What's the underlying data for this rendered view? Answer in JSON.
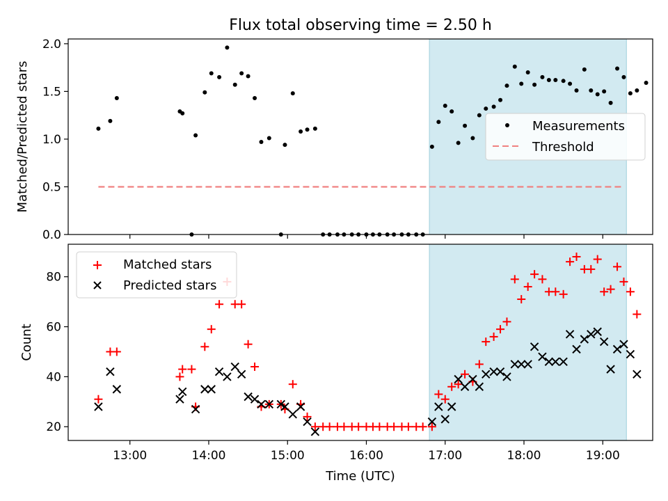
{
  "chart_data": [
    {
      "type": "scatter",
      "title": "Flux total observing time = 2.50 h",
      "xlabel": "",
      "ylabel": "Matched/Predicted stars",
      "xlim": [
        "12:13",
        "19:38"
      ],
      "ylim": [
        0,
        2.05
      ],
      "yticks": [
        "0.0",
        "0.5",
        "1.0",
        "1.5",
        "2.0"
      ],
      "highlight_span": [
        "16:48",
        "19:18"
      ],
      "highlight_color": "#add8e6",
      "legend": {
        "placement": "center-right",
        "entries": [
          "Measurements",
          "Threshold"
        ]
      },
      "threshold": {
        "name": "Threshold",
        "value": 0.5,
        "x_range": [
          "12:36",
          "19:16"
        ],
        "color": "#f08080",
        "style": "dashed"
      },
      "series": [
        {
          "name": "Measurements",
          "color": "#000000",
          "marker": "dot",
          "points": [
            [
              "12:36",
              1.11
            ],
            [
              "12:45",
              1.19
            ],
            [
              "12:50",
              1.43
            ],
            [
              "13:38",
              1.29
            ],
            [
              "13:40",
              1.27
            ],
            [
              "13:47",
              0.0
            ],
            [
              "13:50",
              1.04
            ],
            [
              "13:57",
              1.49
            ],
            [
              "14:02",
              1.69
            ],
            [
              "14:08",
              1.65
            ],
            [
              "14:14",
              1.96
            ],
            [
              "14:20",
              1.57
            ],
            [
              "14:25",
              1.69
            ],
            [
              "14:30",
              1.66
            ],
            [
              "14:35",
              1.43
            ],
            [
              "14:40",
              0.97
            ],
            [
              "14:46",
              1.01
            ],
            [
              "14:55",
              0.0
            ],
            [
              "14:58",
              0.94
            ],
            [
              "15:04",
              1.48
            ],
            [
              "15:10",
              1.08
            ],
            [
              "15:15",
              1.1
            ],
            [
              "15:21",
              1.11
            ],
            [
              "15:27",
              0.0
            ],
            [
              "15:32",
              0.0
            ],
            [
              "15:38",
              0.0
            ],
            [
              "15:43",
              0.0
            ],
            [
              "15:49",
              0.0
            ],
            [
              "15:54",
              0.0
            ],
            [
              "16:00",
              0.0
            ],
            [
              "16:05",
              0.0
            ],
            [
              "16:10",
              0.0
            ],
            [
              "16:16",
              0.0
            ],
            [
              "16:21",
              0.0
            ],
            [
              "16:27",
              0.0
            ],
            [
              "16:32",
              0.0
            ],
            [
              "16:38",
              0.0
            ],
            [
              "16:43",
              0.0
            ],
            [
              "16:50",
              0.92
            ],
            [
              "16:55",
              1.18
            ],
            [
              "17:00",
              1.35
            ],
            [
              "17:05",
              1.29
            ],
            [
              "17:10",
              0.96
            ],
            [
              "17:15",
              1.14
            ],
            [
              "17:21",
              1.01
            ],
            [
              "17:26",
              1.25
            ],
            [
              "17:31",
              1.32
            ],
            [
              "17:37",
              1.34
            ],
            [
              "17:42",
              1.41
            ],
            [
              "17:47",
              1.56
            ],
            [
              "17:53",
              1.76
            ],
            [
              "17:58",
              1.58
            ],
            [
              "18:03",
              1.7
            ],
            [
              "18:08",
              1.57
            ],
            [
              "18:14",
              1.65
            ],
            [
              "18:19",
              1.62
            ],
            [
              "18:24",
              1.62
            ],
            [
              "18:30",
              1.61
            ],
            [
              "18:35",
              1.58
            ],
            [
              "18:40",
              1.51
            ],
            [
              "18:46",
              1.73
            ],
            [
              "18:51",
              1.51
            ],
            [
              "18:56",
              1.47
            ],
            [
              "19:01",
              1.5
            ],
            [
              "19:06",
              1.38
            ],
            [
              "19:11",
              1.74
            ],
            [
              "19:16",
              1.65
            ],
            [
              "19:21",
              1.48
            ],
            [
              "19:26",
              1.51
            ],
            [
              "19:33",
              1.59
            ]
          ]
        }
      ]
    },
    {
      "type": "scatter",
      "xlabel": "Time (UTC)",
      "ylabel": "Count",
      "xlim": [
        "12:13",
        "19:38"
      ],
      "ylim": [
        14.5,
        93
      ],
      "xticks": [
        "13:00",
        "14:00",
        "15:00",
        "16:00",
        "17:00",
        "18:00",
        "19:00"
      ],
      "yticks": [
        "20",
        "40",
        "60",
        "80"
      ],
      "highlight_span": [
        "16:48",
        "19:18"
      ],
      "highlight_color": "#add8e6",
      "legend": {
        "placement": "upper-left",
        "entries": [
          "Matched stars",
          "Predicted stars"
        ]
      },
      "series": [
        {
          "name": "Matched stars",
          "color": "#ff0000",
          "marker": "plus",
          "points": [
            [
              "12:36",
              31
            ],
            [
              "12:45",
              50
            ],
            [
              "12:50",
              50
            ],
            [
              "13:38",
              40
            ],
            [
              "13:40",
              43
            ],
            [
              "13:47",
              43
            ],
            [
              "13:50",
              28
            ],
            [
              "13:57",
              52
            ],
            [
              "14:02",
              59
            ],
            [
              "14:08",
              69
            ],
            [
              "14:14",
              78
            ],
            [
              "14:20",
              69
            ],
            [
              "14:25",
              69
            ],
            [
              "14:30",
              53
            ],
            [
              "14:35",
              44
            ],
            [
              "14:40",
              28
            ],
            [
              "14:46",
              29
            ],
            [
              "14:55",
              29
            ],
            [
              "14:58",
              27
            ],
            [
              "15:04",
              37
            ],
            [
              "15:10",
              29
            ],
            [
              "15:15",
              24
            ],
            [
              "15:21",
              20
            ],
            [
              "15:27",
              20
            ],
            [
              "15:32",
              20
            ],
            [
              "15:38",
              20
            ],
            [
              "15:43",
              20
            ],
            [
              "15:49",
              20
            ],
            [
              "15:54",
              20
            ],
            [
              "16:00",
              20
            ],
            [
              "16:05",
              20
            ],
            [
              "16:10",
              20
            ],
            [
              "16:16",
              20
            ],
            [
              "16:21",
              20
            ],
            [
              "16:27",
              20
            ],
            [
              "16:32",
              20
            ],
            [
              "16:38",
              20
            ],
            [
              "16:43",
              20
            ],
            [
              "16:50",
              20
            ],
            [
              "16:55",
              33
            ],
            [
              "17:00",
              31
            ],
            [
              "17:05",
              36
            ],
            [
              "17:10",
              37
            ],
            [
              "17:15",
              41
            ],
            [
              "17:21",
              38
            ],
            [
              "17:26",
              45
            ],
            [
              "17:31",
              54
            ],
            [
              "17:37",
              56
            ],
            [
              "17:42",
              59
            ],
            [
              "17:47",
              62
            ],
            [
              "17:53",
              79
            ],
            [
              "17:58",
              71
            ],
            [
              "18:03",
              76
            ],
            [
              "18:08",
              81
            ],
            [
              "18:14",
              79
            ],
            [
              "18:19",
              74
            ],
            [
              "18:24",
              74
            ],
            [
              "18:30",
              73
            ],
            [
              "18:35",
              86
            ],
            [
              "18:40",
              88
            ],
            [
              "18:46",
              83
            ],
            [
              "18:51",
              83
            ],
            [
              "18:56",
              87
            ],
            [
              "19:01",
              74
            ],
            [
              "19:06",
              75
            ],
            [
              "19:11",
              84
            ],
            [
              "19:16",
              78
            ],
            [
              "19:21",
              74
            ],
            [
              "19:26",
              65
            ]
          ]
        },
        {
          "name": "Predicted stars",
          "color": "#000000",
          "marker": "x",
          "points": [
            [
              "12:36",
              28
            ],
            [
              "12:45",
              42
            ],
            [
              "12:50",
              35
            ],
            [
              "13:38",
              31
            ],
            [
              "13:40",
              34
            ],
            [
              "13:50",
              27
            ],
            [
              "13:57",
              35
            ],
            [
              "14:02",
              35
            ],
            [
              "14:08",
              42
            ],
            [
              "14:14",
              40
            ],
            [
              "14:20",
              44
            ],
            [
              "14:25",
              41
            ],
            [
              "14:30",
              32
            ],
            [
              "14:35",
              31
            ],
            [
              "14:40",
              29
            ],
            [
              "14:46",
              29
            ],
            [
              "14:55",
              29
            ],
            [
              "14:58",
              28
            ],
            [
              "15:04",
              25
            ],
            [
              "15:10",
              28
            ],
            [
              "15:15",
              22
            ],
            [
              "15:21",
              18
            ],
            [
              "16:50",
              22
            ],
            [
              "16:55",
              28
            ],
            [
              "17:00",
              23
            ],
            [
              "17:05",
              28
            ],
            [
              "17:10",
              39
            ],
            [
              "17:15",
              36
            ],
            [
              "17:21",
              39
            ],
            [
              "17:26",
              36
            ],
            [
              "17:31",
              41
            ],
            [
              "17:37",
              42
            ],
            [
              "17:42",
              42
            ],
            [
              "17:47",
              40
            ],
            [
              "17:53",
              45
            ],
            [
              "17:58",
              45
            ],
            [
              "18:03",
              45
            ],
            [
              "18:08",
              52
            ],
            [
              "18:14",
              48
            ],
            [
              "18:19",
              46
            ],
            [
              "18:24",
              46
            ],
            [
              "18:30",
              46
            ],
            [
              "18:35",
              57
            ],
            [
              "18:40",
              51
            ],
            [
              "18:46",
              55
            ],
            [
              "18:51",
              57
            ],
            [
              "18:56",
              58
            ],
            [
              "19:01",
              54
            ],
            [
              "19:06",
              43
            ],
            [
              "19:11",
              51
            ],
            [
              "19:16",
              53
            ],
            [
              "19:21",
              49
            ],
            [
              "19:26",
              41
            ]
          ]
        }
      ]
    }
  ]
}
